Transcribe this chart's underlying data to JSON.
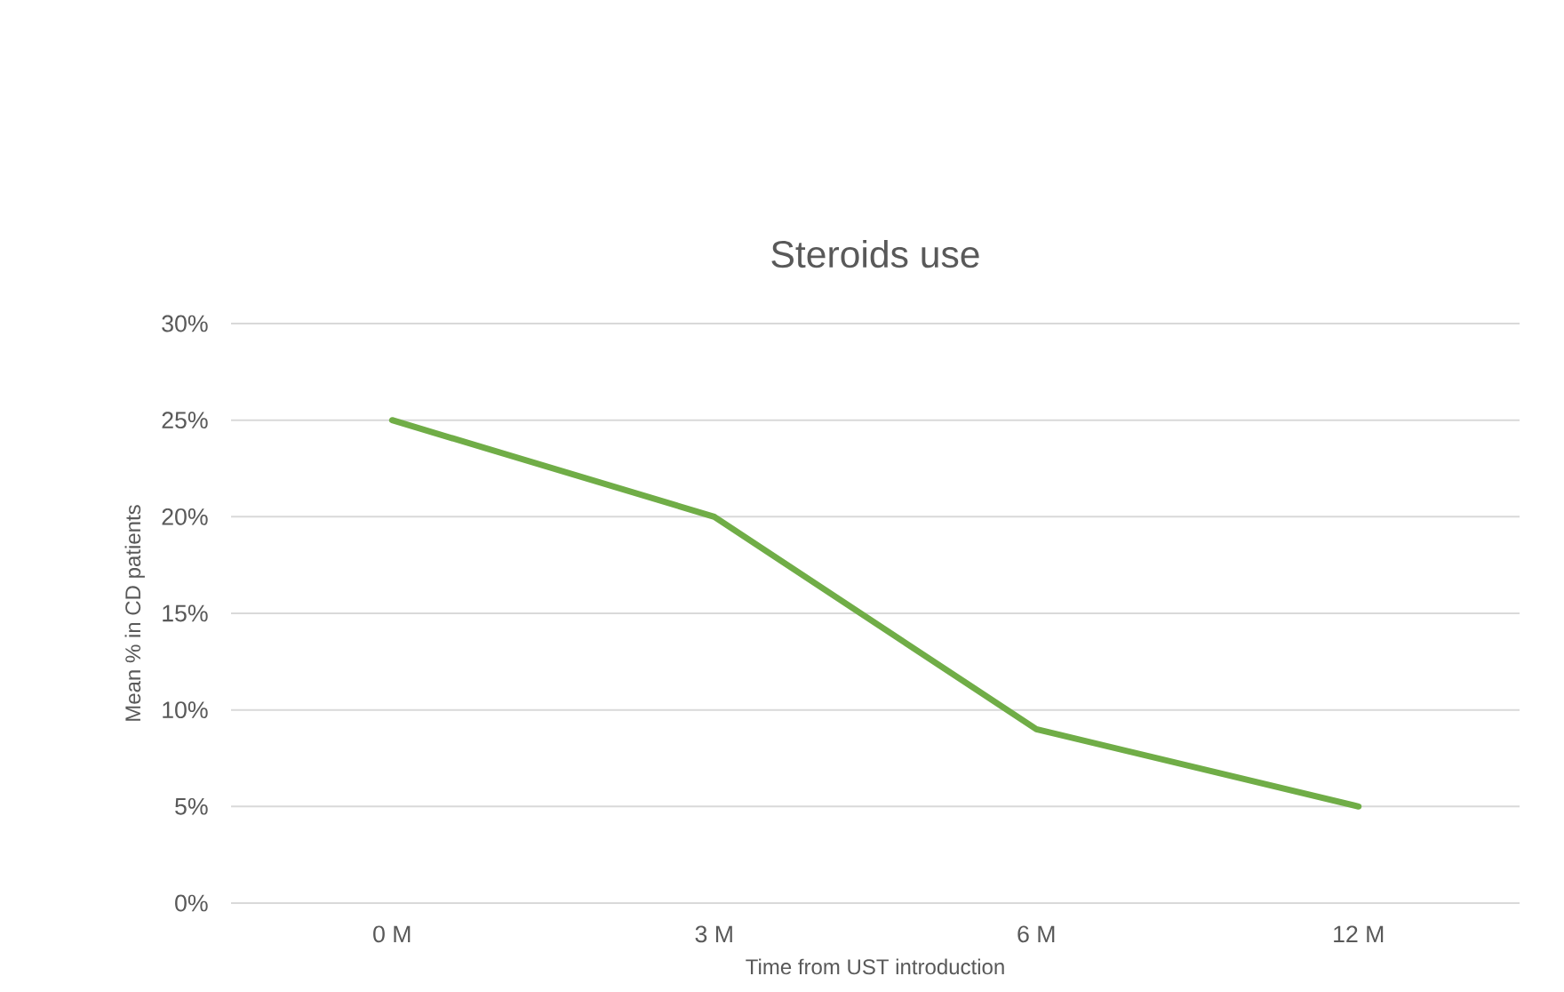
{
  "chart_data": {
    "type": "line",
    "title": "Steroids use",
    "xlabel": "Time from UST introduction",
    "ylabel": "Mean % in CD patients",
    "categories": [
      "0 M",
      "3 M",
      "6 M",
      "12 M"
    ],
    "series": [
      {
        "color": "#70ad47",
        "values": [
          25,
          20,
          9,
          5
        ]
      }
    ],
    "ylim": [
      0,
      30
    ],
    "yticks": [
      {
        "value": 0,
        "label": "0%"
      },
      {
        "value": 5,
        "label": "5%"
      },
      {
        "value": 10,
        "label": "10%"
      },
      {
        "value": 15,
        "label": "15%"
      },
      {
        "value": 20,
        "label": "20%"
      },
      {
        "value": 25,
        "label": "25%"
      },
      {
        "value": 30,
        "label": "30%"
      }
    ],
    "grid": "y",
    "legend": false,
    "marker": "none",
    "line_style": "solid"
  }
}
